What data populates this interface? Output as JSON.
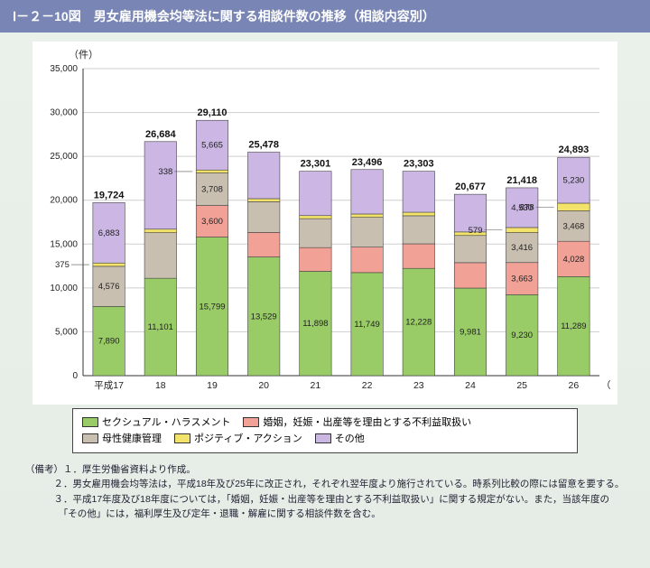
{
  "title": "Ⅰ－２－10図　男女雇用機会均等法に関する相談件数の推移（相談内容別）",
  "chart": {
    "type": "bar-stacked",
    "y_unit": "（件）",
    "x_unit": "（年度）",
    "ylim": [
      0,
      35000
    ],
    "ytick_step": 5000,
    "grid_color": "#cfcfcf",
    "axis_color": "#333333",
    "background_color": "#ffffff",
    "label_fontsize": 10,
    "total_fontsize": 11,
    "categories": [
      "平成17",
      "18",
      "19",
      "20",
      "21",
      "22",
      "23",
      "24",
      "25",
      "26"
    ],
    "series": [
      {
        "key": "sexual",
        "label": "セクシュアル・ハラスメント",
        "color": "#99cc66"
      },
      {
        "key": "marriage",
        "label": "婚姻，妊娠・出産等を理由とする不利益取扱い",
        "color": "#f1a196"
      },
      {
        "key": "maternal",
        "label": "母性健康管理",
        "color": "#c9bfb0"
      },
      {
        "key": "positive",
        "label": "ポジティブ・アクション",
        "color": "#f4e36a"
      },
      {
        "key": "other",
        "label": "その他",
        "color": "#cbb6e4"
      }
    ],
    "data": [
      {
        "sexual": 7890,
        "marriage": 0,
        "maternal": 4576,
        "positive": 375,
        "other": 6883,
        "total": 19724,
        "show": {
          "sexual": "7,890",
          "maternal": "4,576",
          "positive": "375",
          "other": "6,883"
        }
      },
      {
        "sexual": 11101,
        "marriage": 0,
        "maternal": 5200,
        "positive": 400,
        "other": 9983,
        "total": 26684,
        "show": {
          "sexual": "11,101"
        }
      },
      {
        "sexual": 15799,
        "marriage": 3600,
        "maternal": 3708,
        "positive": 338,
        "other": 5665,
        "total": 29110,
        "show": {
          "sexual": "15,799",
          "marriage": "3,600",
          "maternal": "3,708",
          "positive": "338",
          "other": "5,665"
        }
      },
      {
        "sexual": 13529,
        "marriage": 2800,
        "maternal": 3500,
        "positive": 350,
        "other": 5299,
        "total": 25478,
        "show": {
          "sexual": "13,529"
        }
      },
      {
        "sexual": 11898,
        "marriage": 2700,
        "maternal": 3300,
        "positive": 350,
        "other": 5053,
        "total": 23301,
        "show": {
          "sexual": "11,898"
        }
      },
      {
        "sexual": 11749,
        "marriage": 2900,
        "maternal": 3400,
        "positive": 380,
        "other": 5067,
        "total": 23496,
        "show": {
          "sexual": "11,749"
        }
      },
      {
        "sexual": 12228,
        "marriage": 2800,
        "maternal": 3200,
        "positive": 400,
        "other": 4675,
        "total": 23303,
        "show": {
          "sexual": "12,228"
        }
      },
      {
        "sexual": 9981,
        "marriage": 2900,
        "maternal": 3100,
        "positive": 400,
        "other": 4296,
        "total": 20677,
        "show": {
          "sexual": "9,981"
        }
      },
      {
        "sexual": 9230,
        "marriage": 3663,
        "maternal": 3416,
        "positive": 579,
        "other": 4530,
        "total": 21418,
        "show": {
          "sexual": "9,230",
          "marriage": "3,663",
          "maternal": "3,416",
          "positive": "579",
          "other": "4,530"
        }
      },
      {
        "sexual": 11289,
        "marriage": 4028,
        "maternal": 3468,
        "positive": 878,
        "other": 5230,
        "total": 24893,
        "show": {
          "sexual": "11,289",
          "marriage": "4,028",
          "maternal": "3,468",
          "positive": "878",
          "other": "5,230"
        }
      }
    ]
  },
  "notes": {
    "lead": "（備考）",
    "items": [
      "１．厚生労働省資料より作成。",
      "２．男女雇用機会均等法は，平成18年及び25年に改正され，それぞれ翌年度より施行されている。時系列比較の際には留意を要する。",
      "３．平成17年度及び18年度については，「婚姻，妊娠・出産等を理由とする不利益取扱い」に関する規定がない。また，当該年度の「その他」には，福利厚生及び定年・退職・解雇に関する相談件数を含む。"
    ]
  }
}
